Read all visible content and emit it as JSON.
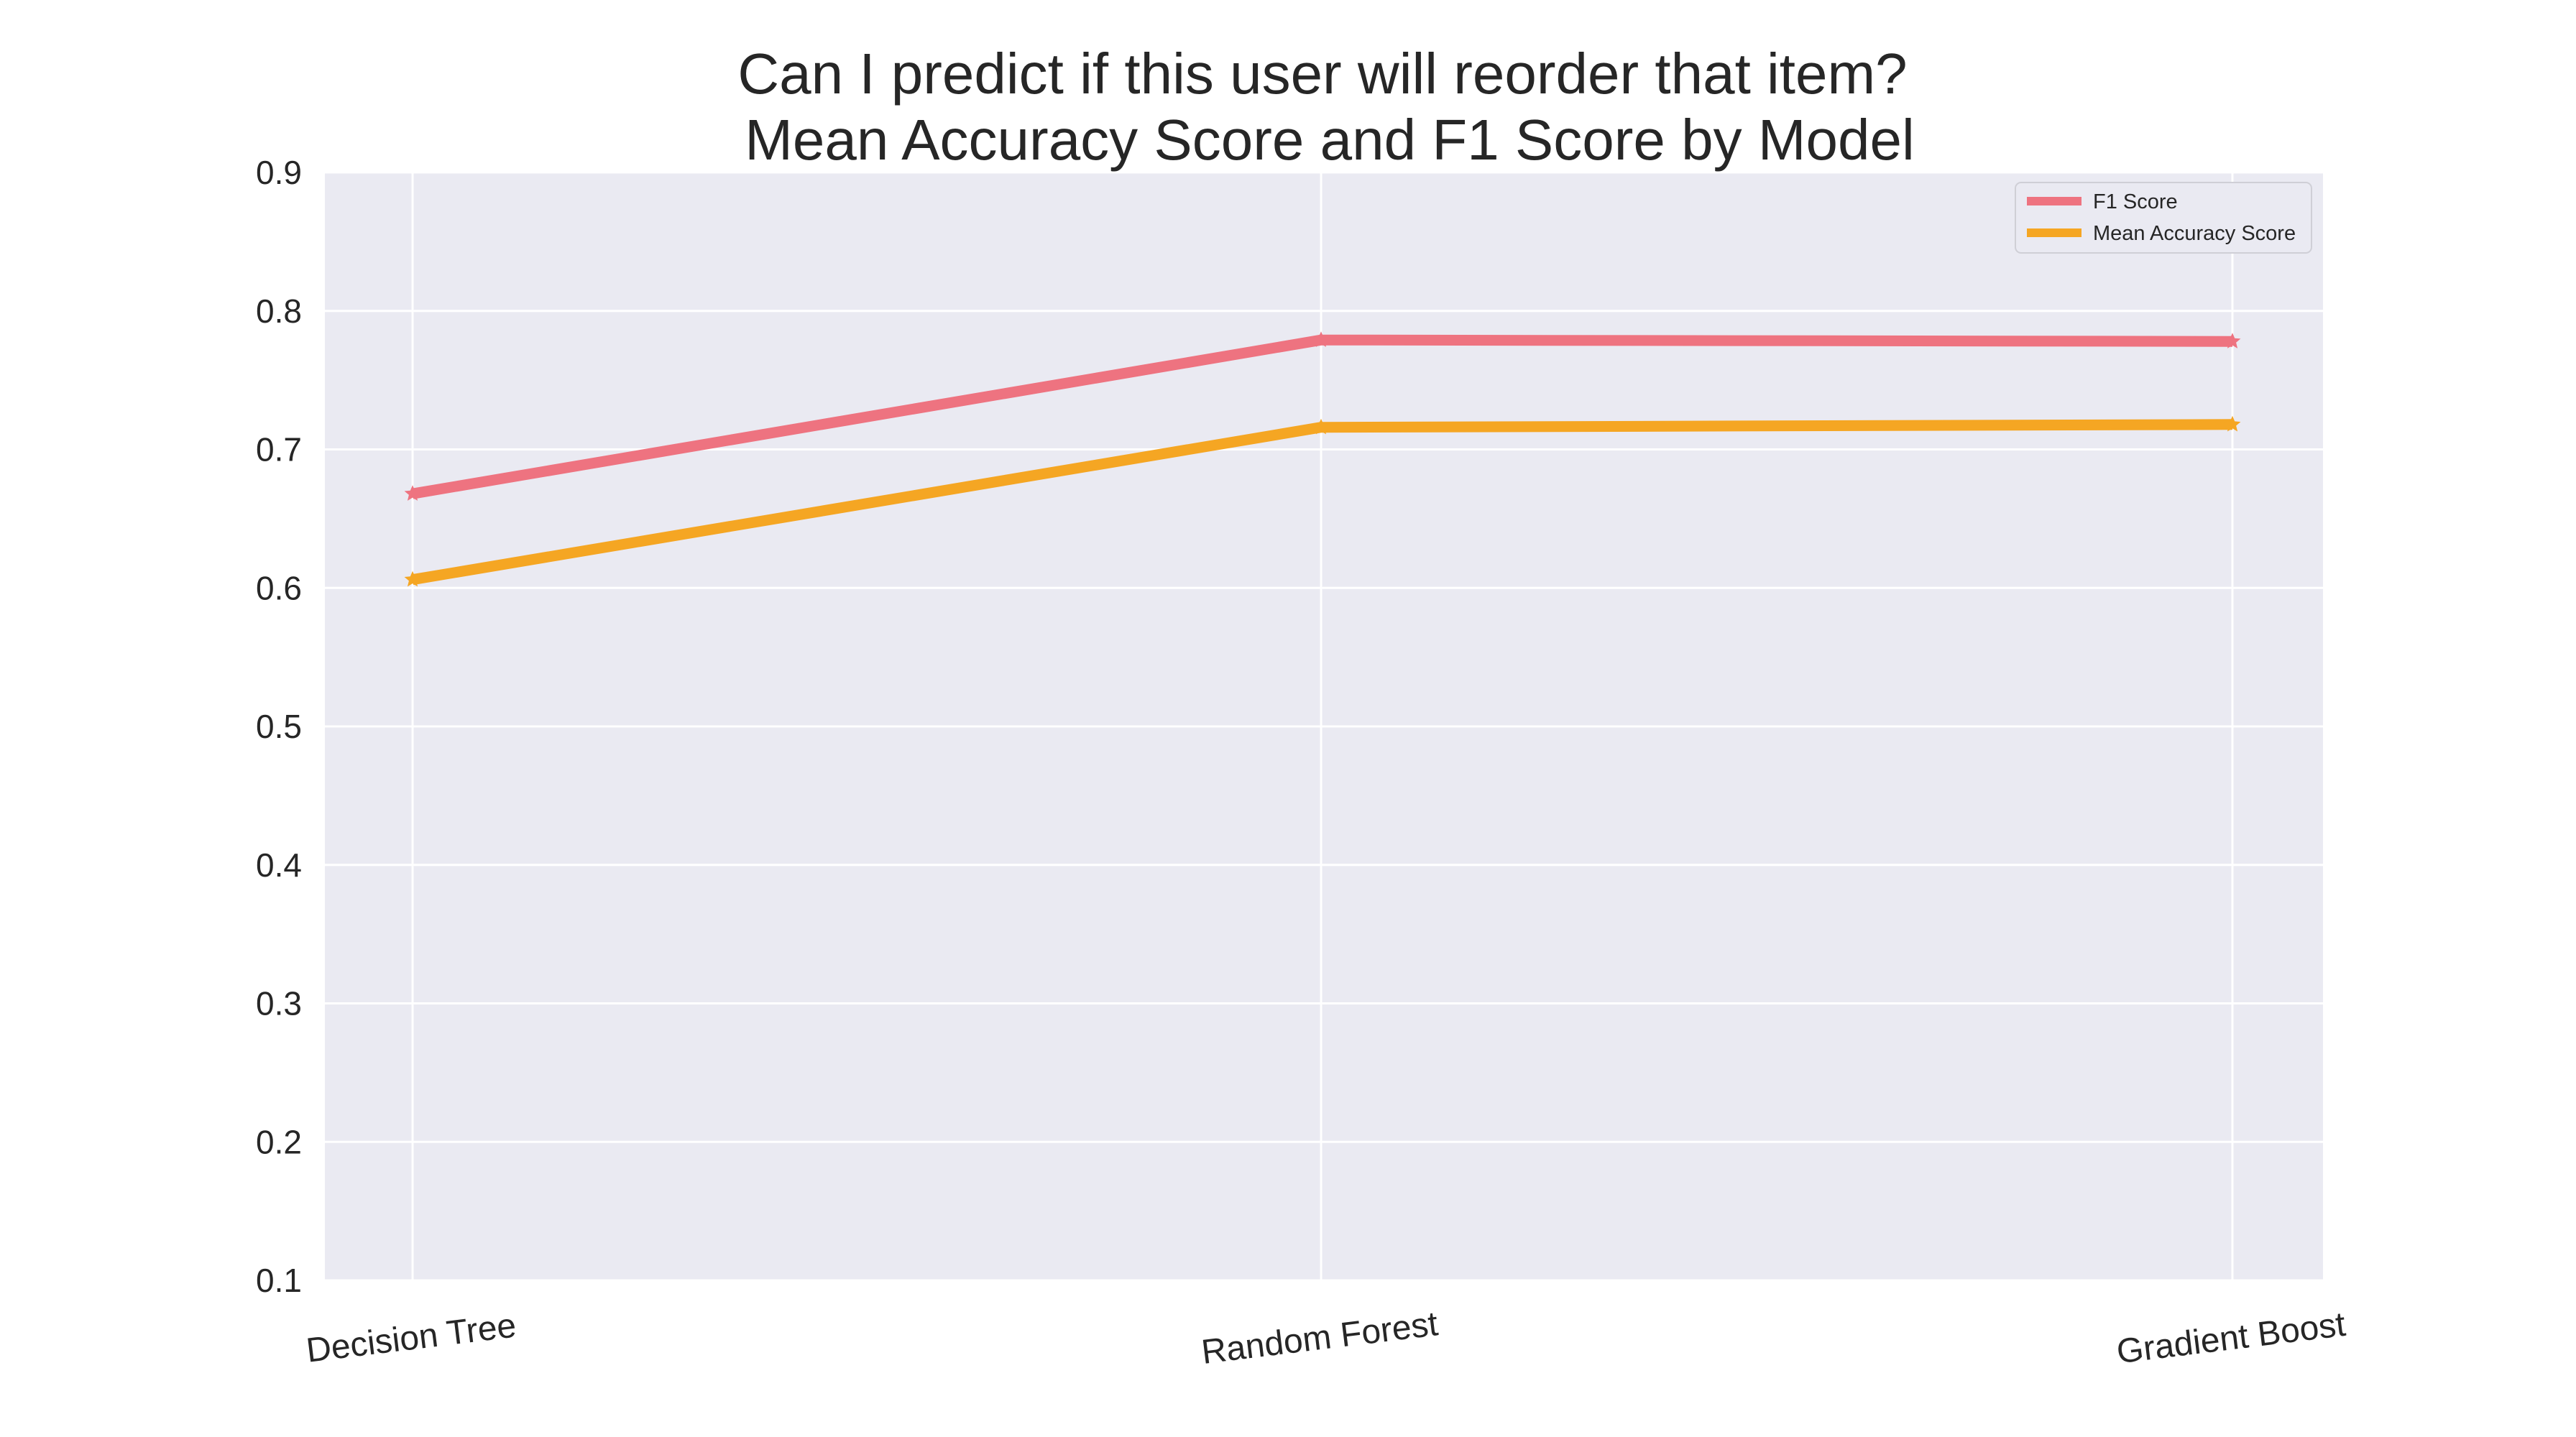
{
  "chart_data": {
    "type": "line",
    "title_line1": "Can I predict if this user will reorder that item?",
    "title_line2": "Mean Accuracy Score and F1 Score by Model",
    "categories": [
      "Decision Tree",
      "Random Forest",
      "Gradient Boost"
    ],
    "y_ticks": [
      "0.1",
      "0.2",
      "0.3",
      "0.4",
      "0.5",
      "0.6",
      "0.7",
      "0.8",
      "0.9"
    ],
    "ylim": [
      0.1,
      0.9
    ],
    "grid": true,
    "legend_position": "top-right",
    "background_color": "#eaeaf2",
    "grid_color": "#ffffff",
    "series": [
      {
        "name": "F1 Score",
        "color": "#ee7380",
        "marker": "star",
        "values": [
          0.668,
          0.779,
          0.778
        ]
      },
      {
        "name": "Mean Accuracy Score",
        "color": "#f5a623",
        "marker": "star",
        "values": [
          0.606,
          0.716,
          0.718
        ]
      }
    ]
  }
}
